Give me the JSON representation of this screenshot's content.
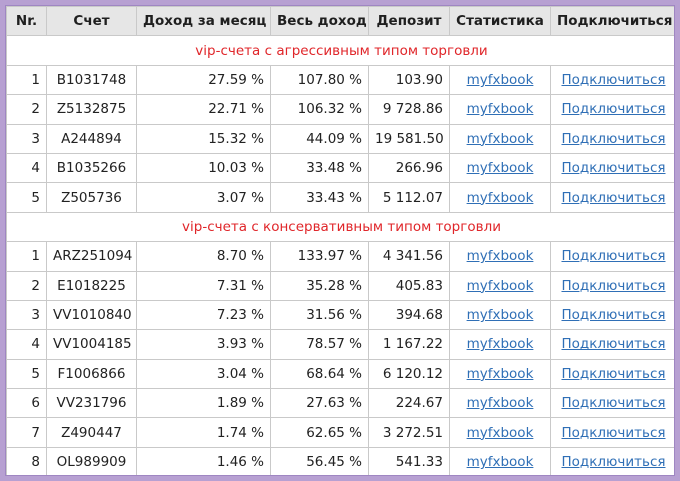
{
  "headers": {
    "nr": "Nr.",
    "account": "Счет",
    "monthly": "Доход за месяц",
    "total": "Весь доход",
    "deposit": "Депозит",
    "stats": "Статистика",
    "connect": "Подключиться"
  },
  "sections": [
    {
      "title": "vip-счета с агрессивным типом торговли",
      "rows": [
        {
          "nr": "1",
          "account": "B1031748",
          "monthly": "27.59 %",
          "total": "107.80 %",
          "deposit": "103.90",
          "stats": "myfxbook",
          "connect": "Подключиться"
        },
        {
          "nr": "2",
          "account": "Z5132875",
          "monthly": "22.71 %",
          "total": "106.32 %",
          "deposit": "9 728.86",
          "stats": "myfxbook",
          "connect": "Подключиться"
        },
        {
          "nr": "3",
          "account": "A244894",
          "monthly": "15.32 %",
          "total": "44.09 %",
          "deposit": "19 581.50",
          "stats": "myfxbook",
          "connect": "Подключиться"
        },
        {
          "nr": "4",
          "account": "B1035266",
          "monthly": "10.03 %",
          "total": "33.48 %",
          "deposit": "266.96",
          "stats": "myfxbook",
          "connect": "Подключиться"
        },
        {
          "nr": "5",
          "account": "Z505736",
          "monthly": "3.07 %",
          "total": "33.43 %",
          "deposit": "5 112.07",
          "stats": "myfxbook",
          "connect": "Подключиться"
        }
      ]
    },
    {
      "title": "vip-счета с консервативным типом торговли",
      "rows": [
        {
          "nr": "1",
          "account": "ARZ251094",
          "monthly": "8.70 %",
          "total": "133.97 %",
          "deposit": "4 341.56",
          "stats": "myfxbook",
          "connect": "Подключиться"
        },
        {
          "nr": "2",
          "account": "E1018225",
          "monthly": "7.31 %",
          "total": "35.28 %",
          "deposit": "405.83",
          "stats": "myfxbook",
          "connect": "Подключиться"
        },
        {
          "nr": "3",
          "account": "VV1010840",
          "monthly": "7.23 %",
          "total": "31.56 %",
          "deposit": "394.68",
          "stats": "myfxbook",
          "connect": "Подключиться"
        },
        {
          "nr": "4",
          "account": "VV1004185",
          "monthly": "3.93 %",
          "total": "78.57 %",
          "deposit": "1 167.22",
          "stats": "myfxbook",
          "connect": "Подключиться"
        },
        {
          "nr": "5",
          "account": "F1006866",
          "monthly": "3.04 %",
          "total": "68.64 %",
          "deposit": "6 120.12",
          "stats": "myfxbook",
          "connect": "Подключиться"
        },
        {
          "nr": "6",
          "account": "VV231796",
          "monthly": "1.89 %",
          "total": "27.63 %",
          "deposit": "224.67",
          "stats": "myfxbook",
          "connect": "Подключиться"
        },
        {
          "nr": "7",
          "account": "Z490447",
          "monthly": "1.74 %",
          "total": "62.65 %",
          "deposit": "3 272.51",
          "stats": "myfxbook",
          "connect": "Подключиться"
        },
        {
          "nr": "8",
          "account": "OL989909",
          "monthly": "1.46 %",
          "total": "56.45 %",
          "deposit": "541.33",
          "stats": "myfxbook",
          "connect": "Подключиться"
        }
      ]
    }
  ],
  "colors": {
    "section_title": "#e0262a",
    "link": "#2f6fb6",
    "header_bg": "#e6e6e6",
    "frame": "#b7a0d2"
  }
}
